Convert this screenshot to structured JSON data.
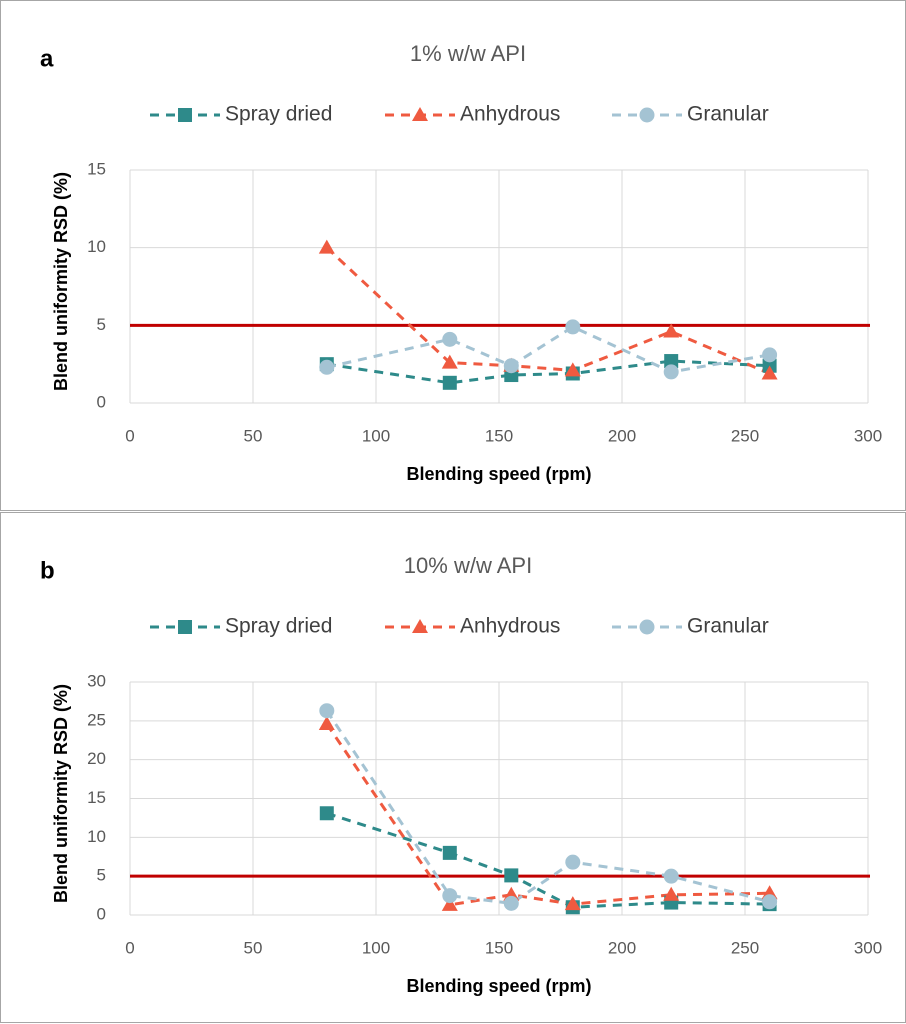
{
  "chart_data": [
    {
      "type": "line",
      "panel_label": "a",
      "title": "1% w/w API",
      "x_label": "Blending speed (rpm)",
      "y_label": "Blend uniformity RSD (%)",
      "xlim": [
        0,
        300
      ],
      "xticks": [
        0,
        50,
        100,
        150,
        200,
        250,
        300
      ],
      "ylim": [
        0,
        15
      ],
      "yticks": [
        0,
        5,
        10,
        15
      ],
      "grid": true,
      "reference_line": {
        "value": 5,
        "color": "#c00000"
      },
      "x": [
        80,
        130,
        155,
        180,
        220,
        260
      ],
      "series": [
        {
          "name": "Spray dried",
          "color": "#2e8a8a",
          "marker": "square",
          "values": [
            2.5,
            1.3,
            1.8,
            1.9,
            2.7,
            2.4
          ]
        },
        {
          "name": "Anhydrous",
          "color": "#ef5a40",
          "marker": "triangle",
          "values": [
            10.0,
            2.6,
            2.4,
            2.1,
            4.6,
            1.9
          ]
        },
        {
          "name": "Granular",
          "color": "#a4c3d3",
          "marker": "circle",
          "values": [
            2.3,
            4.1,
            2.4,
            4.9,
            2.0,
            3.1
          ]
        }
      ]
    },
    {
      "type": "line",
      "panel_label": "b",
      "title": "10% w/w API",
      "x_label": "Blending speed (rpm)",
      "y_label": "Blend uniformity RSD (%)",
      "xlim": [
        0,
        300
      ],
      "xticks": [
        0,
        50,
        100,
        150,
        200,
        250,
        300
      ],
      "ylim": [
        0,
        30
      ],
      "yticks": [
        0,
        5,
        10,
        15,
        20,
        25,
        30
      ],
      "grid": true,
      "reference_line": {
        "value": 5,
        "color": "#c00000"
      },
      "x": [
        80,
        130,
        155,
        180,
        220,
        260
      ],
      "series": [
        {
          "name": "Spray dried",
          "color": "#2e8a8a",
          "marker": "square",
          "values": [
            13.1,
            8.0,
            5.1,
            1.0,
            1.6,
            1.4
          ]
        },
        {
          "name": "Anhydrous",
          "color": "#ef5a40",
          "marker": "triangle",
          "values": [
            24.6,
            1.3,
            2.6,
            1.4,
            2.6,
            2.8
          ]
        },
        {
          "name": "Granular",
          "color": "#a4c3d3",
          "marker": "circle",
          "values": [
            26.3,
            2.5,
            1.5,
            6.8,
            5.0,
            1.7
          ]
        }
      ]
    }
  ]
}
